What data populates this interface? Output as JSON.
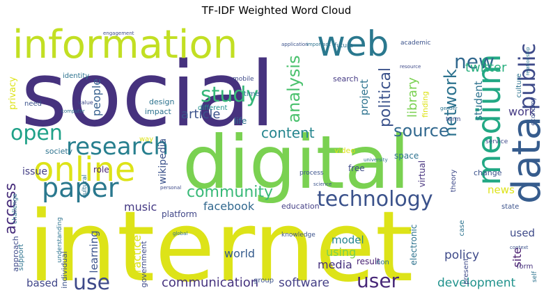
{
  "chart_data": {
    "type": "wordcloud",
    "title": "TF-IDF Weighted Word Cloud",
    "colormap": "viridis",
    "words": [
      {
        "text": "social",
        "weight": 1.0,
        "color": "#46327e"
      },
      {
        "text": "internet",
        "weight": 0.98,
        "color": "#dde318"
      },
      {
        "text": "digital",
        "weight": 0.72,
        "color": "#7ad151"
      },
      {
        "text": "information",
        "weight": 0.46,
        "color": "#c2df23"
      },
      {
        "text": "data",
        "weight": 0.42,
        "color": "#365c8d"
      },
      {
        "text": "medium",
        "weight": 0.36,
        "color": "#22a884"
      },
      {
        "text": "web",
        "weight": 0.33,
        "color": "#2a788e"
      },
      {
        "text": "online",
        "weight": 0.33,
        "color": "#dde318"
      },
      {
        "text": "paper",
        "weight": 0.28,
        "color": "#2a788e"
      },
      {
        "text": "research",
        "weight": 0.27,
        "color": "#277f8e"
      },
      {
        "text": "technology",
        "weight": 0.25,
        "color": "#3b528b"
      },
      {
        "text": "public",
        "weight": 0.25,
        "color": "#3e4a89"
      },
      {
        "text": "open",
        "weight": 0.24,
        "color": "#1fa188"
      },
      {
        "text": "use",
        "weight": 0.22,
        "color": "#3e4989"
      },
      {
        "text": "user",
        "weight": 0.22,
        "color": "#482878"
      },
      {
        "text": "study",
        "weight": 0.21,
        "color": "#35b779"
      },
      {
        "text": "new",
        "weight": 0.2,
        "color": "#31688e"
      },
      {
        "text": "access",
        "weight": 0.19,
        "color": "#472d7b"
      },
      {
        "text": "analysis",
        "weight": 0.18,
        "color": "#4ac16d"
      },
      {
        "text": "network",
        "weight": 0.17,
        "color": "#2c728e"
      },
      {
        "text": "community",
        "weight": 0.17,
        "color": "#38b977"
      },
      {
        "text": "source",
        "weight": 0.16,
        "color": "#31688e"
      },
      {
        "text": "political",
        "weight": 0.16,
        "color": "#3b528b"
      },
      {
        "text": "content",
        "weight": 0.15,
        "color": "#25858e"
      },
      {
        "text": "communication",
        "weight": 0.12,
        "color": "#46337e"
      },
      {
        "text": "development",
        "weight": 0.12,
        "color": "#20928c"
      },
      {
        "text": "twitter",
        "weight": 0.12,
        "color": "#29af7f"
      },
      {
        "text": "article",
        "weight": 0.12,
        "color": "#3b528b"
      },
      {
        "text": "library",
        "weight": 0.12,
        "color": "#7ad151"
      },
      {
        "text": "people",
        "weight": 0.11,
        "color": "#355f8d"
      },
      {
        "text": "student",
        "weight": 0.11,
        "color": "#2c728e"
      },
      {
        "text": "software",
        "weight": 0.11,
        "color": "#433e85"
      },
      {
        "text": "music",
        "weight": 0.11,
        "color": "#443983"
      },
      {
        "text": "facebook",
        "weight": 0.11,
        "color": "#31688e"
      },
      {
        "text": "project",
        "weight": 0.11,
        "color": "#2c728e"
      },
      {
        "text": "media",
        "weight": 0.1,
        "color": "#46327e"
      },
      {
        "text": "world",
        "weight": 0.1,
        "color": "#365c8d"
      },
      {
        "text": "using",
        "weight": 0.1,
        "color": "#7ad151"
      },
      {
        "text": "policy",
        "weight": 0.1,
        "color": "#3e4a89"
      },
      {
        "text": "site",
        "weight": 0.1,
        "color": "#481b6d"
      },
      {
        "text": "practice",
        "weight": 0.1,
        "color": "#dde318"
      },
      {
        "text": "learning",
        "weight": 0.1,
        "color": "#3b528b"
      },
      {
        "text": "work",
        "weight": 0.1,
        "color": "#443983"
      },
      {
        "text": "model",
        "weight": 0.09,
        "color": "#25858e"
      },
      {
        "text": "based",
        "weight": 0.09,
        "color": "#404688"
      },
      {
        "text": "news",
        "weight": 0.09,
        "color": "#dde318"
      },
      {
        "text": "used",
        "weight": 0.09,
        "color": "#3e4a89"
      },
      {
        "text": "wikipedia",
        "weight": 0.09,
        "color": "#3b528b"
      },
      {
        "text": "issue",
        "weight": 0.09,
        "color": "#433e85"
      },
      {
        "text": "privacy",
        "weight": 0.09,
        "color": "#dde318"
      },
      {
        "text": "platform",
        "weight": 0.08,
        "color": "#404688"
      },
      {
        "text": "life",
        "weight": 0.08,
        "color": "#2c728e"
      },
      {
        "text": "role",
        "weight": 0.08,
        "color": "#482173"
      },
      {
        "text": "design",
        "weight": 0.08,
        "color": "#2c728e"
      },
      {
        "text": "impact",
        "weight": 0.08,
        "color": "#2c728e"
      },
      {
        "text": "society",
        "weight": 0.07,
        "color": "#2c728e"
      },
      {
        "text": "video",
        "weight": 0.07,
        "color": "#dde318"
      },
      {
        "text": "education",
        "weight": 0.07,
        "color": "#433e85"
      },
      {
        "text": "free",
        "weight": 0.07,
        "color": "#3e4a89"
      },
      {
        "text": "government",
        "weight": 0.07,
        "color": "#3e4a89"
      },
      {
        "text": "individual",
        "weight": 0.07,
        "color": "#3b528b"
      },
      {
        "text": "result",
        "weight": 0.07,
        "color": "#482173"
      },
      {
        "text": "electronic",
        "weight": 0.07,
        "color": "#2c728e"
      },
      {
        "text": "virtual",
        "weight": 0.07,
        "color": "#46327e"
      },
      {
        "text": "space",
        "weight": 0.07,
        "color": "#2c728e"
      },
      {
        "text": "finding",
        "weight": 0.07,
        "color": "#dde318"
      },
      {
        "text": "search",
        "weight": 0.07,
        "color": "#443983"
      },
      {
        "text": "change",
        "weight": 0.07,
        "color": "#3b528b"
      },
      {
        "text": "time",
        "weight": 0.06,
        "color": "#2c728e"
      },
      {
        "text": "way",
        "weight": 0.06,
        "color": "#dde318"
      },
      {
        "text": "support",
        "weight": 0.06,
        "color": "#2c728e"
      },
      {
        "text": "approach",
        "weight": 0.06,
        "color": "#3e4a89"
      },
      {
        "text": "different",
        "weight": 0.06,
        "color": "#20928c"
      },
      {
        "text": "identity",
        "weight": 0.06,
        "color": "#2c728e"
      },
      {
        "text": "need",
        "weight": 0.06,
        "color": "#3b528b"
      },
      {
        "text": "culture",
        "weight": 0.06,
        "color": "#2c728e"
      },
      {
        "text": "state",
        "weight": 0.06,
        "color": "#3b528b"
      },
      {
        "text": "form",
        "weight": 0.06,
        "color": "#46327e"
      },
      {
        "text": "present",
        "weight": 0.06,
        "color": "#3e4a89"
      },
      {
        "text": "case",
        "weight": 0.06,
        "color": "#2c728e"
      },
      {
        "text": "theory",
        "weight": 0.06,
        "color": "#3e4a89"
      },
      {
        "text": "future",
        "weight": 0.05,
        "color": "#2c728e"
      },
      {
        "text": "academic",
        "weight": 0.05,
        "color": "#3b528b"
      },
      {
        "text": "mobile",
        "weight": 0.05,
        "color": "#3e4a89"
      },
      {
        "text": "understanding",
        "weight": 0.05,
        "color": "#2c728e"
      },
      {
        "text": "knowledge",
        "weight": 0.05,
        "color": "#3b528b"
      },
      {
        "text": "non",
        "weight": 0.05,
        "color": "#2c728e"
      },
      {
        "text": "process",
        "weight": 0.05,
        "color": "#3b528b"
      },
      {
        "text": "term",
        "weight": 0.05,
        "color": "#3e4a89"
      },
      {
        "text": "economy",
        "weight": 0.05,
        "color": "#3b528b"
      },
      {
        "text": "challenge",
        "weight": 0.05,
        "color": "#2c728e"
      },
      {
        "text": "service",
        "weight": 0.05,
        "color": "#3e4a89"
      },
      {
        "text": "cultural",
        "weight": 0.05,
        "color": "#2c728e"
      },
      {
        "text": "group",
        "weight": 0.05,
        "color": "#3b528b"
      },
      {
        "text": "self",
        "weight": 0.05,
        "color": "#2c728e"
      },
      {
        "text": "value",
        "weight": 0.04,
        "color": "#3e4a89"
      },
      {
        "text": "computer",
        "weight": 0.04,
        "color": "#2c728e"
      },
      {
        "text": "application",
        "weight": 0.04,
        "color": "#3b528b"
      },
      {
        "text": "important",
        "weight": 0.04,
        "color": "#2c728e"
      },
      {
        "text": "resource",
        "weight": 0.04,
        "color": "#3e4a89"
      },
      {
        "text": "science",
        "weight": 0.04,
        "color": "#3b528b"
      },
      {
        "text": "university",
        "weight": 0.04,
        "color": "#2c728e"
      },
      {
        "text": "personal",
        "weight": 0.04,
        "color": "#3e4a89"
      },
      {
        "text": "global",
        "weight": 0.04,
        "color": "#2c728e"
      },
      {
        "text": "context",
        "weight": 0.04,
        "color": "#3b528b"
      },
      {
        "text": "gender",
        "weight": 0.04,
        "color": "#2c728e"
      },
      {
        "text": "engagement",
        "weight": 0.04,
        "color": "#3e4a89"
      },
      {
        "text": "relationship",
        "weight": 0.04,
        "color": "#2c728e"
      }
    ]
  }
}
